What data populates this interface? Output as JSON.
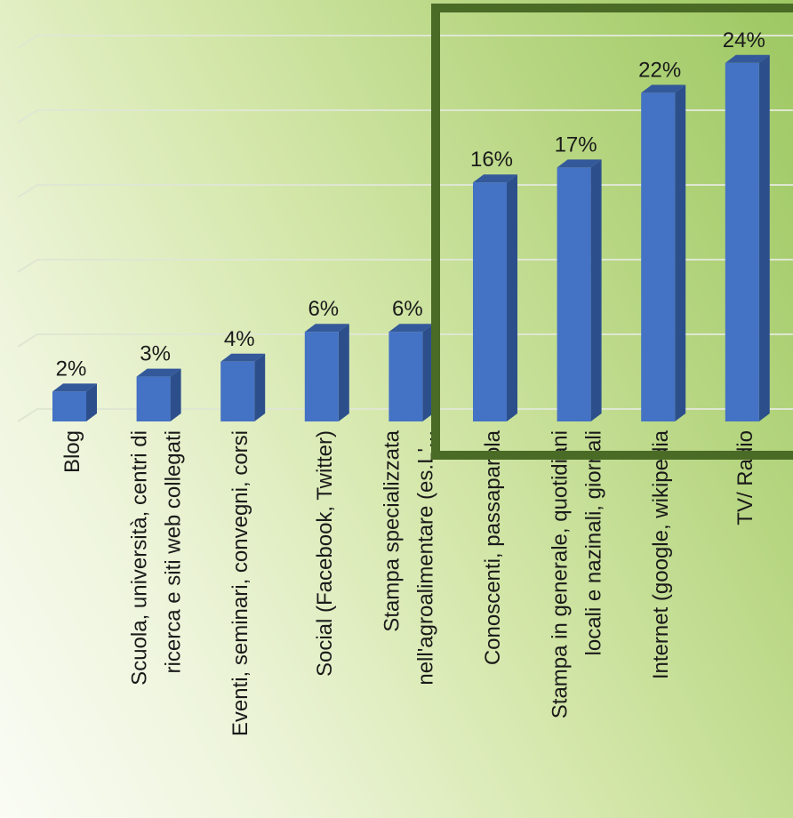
{
  "chart_data": {
    "type": "bar",
    "categories": [
      [
        "Blog"
      ],
      [
        "Scuola, università, centri di",
        "ricerca e siti web collegati"
      ],
      [
        "Eventi, seminari, convegni, corsi"
      ],
      [
        "Social (Facebook, Twitter)"
      ],
      [
        "Stampa specializzata",
        "nell'agroalimentare (es.L'..."
      ],
      [
        "Conoscenti, passaparola"
      ],
      [
        "Stampa in generale, quotidiani",
        "locali e nazinali, giornali"
      ],
      [
        "Internet (google, wikipedia"
      ],
      [
        "TV/ Radio"
      ]
    ],
    "values": [
      2,
      3,
      4,
      6,
      6,
      16,
      17,
      22,
      24
    ],
    "data_labels": [
      "2%",
      "3%",
      "4%",
      "6%",
      "6%",
      "16%",
      "17%",
      "22%",
      "24%"
    ],
    "ylim": [
      0,
      25
    ],
    "grid": true,
    "highlight": {
      "from_index": 5,
      "to_index": 8,
      "color": "#4a6b26"
    },
    "colors": {
      "bar_front": "#4472c4",
      "bar_side": "#2c4f8c",
      "bar_top": "#34599a",
      "gridline": "#dfe7d2",
      "label_text": "#1a1a1a"
    }
  }
}
